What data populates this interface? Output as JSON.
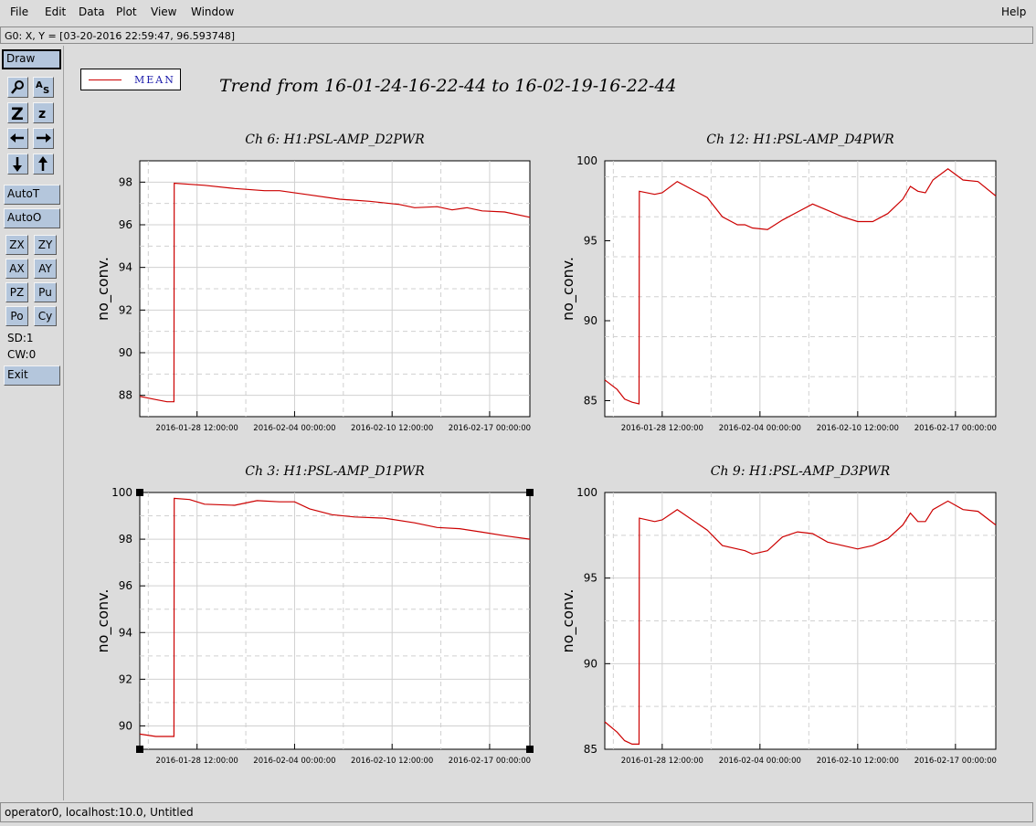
{
  "menubar": {
    "file": "File",
    "edit": "Edit",
    "data": "Data",
    "plot": "Plot",
    "view": "View",
    "window": "Window",
    "help": "Help"
  },
  "coord_readout": "G0: X, Y = [03-20-2016 22:59:47, 96.593748]",
  "toolbar": {
    "draw": "Draw",
    "autot": "AutoT",
    "autoo": "AutoO",
    "zx": "ZX",
    "zy": "ZY",
    "ax": "AX",
    "ay": "AY",
    "pz": "PZ",
    "pu": "Pu",
    "po": "Po",
    "cy": "Cy",
    "sd": "SD:1",
    "cw": "CW:0",
    "exit": "Exit",
    "icons": [
      "magnifier-icon",
      "text-scale-icon",
      "zoom-large-icon",
      "zoom-small-icon",
      "arrow-left-icon",
      "arrow-right-icon",
      "arrow-down-icon",
      "arrow-up-icon"
    ]
  },
  "legend": {
    "label": "MEAN",
    "color": "#cc0000"
  },
  "title": "Trend from 16-01-24-16-22-44 to 16-02-19-16-22-44",
  "status": "operator0, localhost:10.0, Untitled",
  "colors": {
    "trace": "#cc0000",
    "toolbar_button": "#b4c6dc",
    "background": "#dcdcdc"
  },
  "chart_data": [
    {
      "type": "line",
      "title": "Ch 6: H1:PSL-AMP_D2PWR",
      "ylabel": "no_conv.",
      "ylim": [
        87,
        99
      ],
      "yticks": [
        88,
        90,
        92,
        94,
        96,
        98
      ],
      "xlim": [
        "2016-01-24 16:22:44",
        "2016-02-19 16:22:44"
      ],
      "xticks": [
        "2016-01-28 12:00:00",
        "2016-02-04 00:00:00",
        "2016-02-10 12:00:00",
        "2016-02-17 00:00:00"
      ],
      "grid": true,
      "series": [
        {
          "name": "MEAN",
          "x": [
            "2016-01-24 16:22:44",
            "2016-01-25 18:00:00",
            "2016-01-26 12:00:00",
            "2016-01-26 23:00:00",
            "2016-01-26 23:30:00",
            "2016-01-29 00:00:00",
            "2016-01-31 00:00:00",
            "2016-02-02 00:00:00",
            "2016-02-03 00:00:00",
            "2016-02-05 00:00:00",
            "2016-02-07 00:00:00",
            "2016-02-09 00:00:00",
            "2016-02-11 00:00:00",
            "2016-02-12 00:00:00",
            "2016-02-13 12:00:00",
            "2016-02-14 12:00:00",
            "2016-02-15 12:00:00",
            "2016-02-16 12:00:00",
            "2016-02-18 00:00:00",
            "2016-02-19 16:22:44"
          ],
          "y": [
            87.95,
            87.8,
            87.7,
            87.7,
            97.95,
            97.85,
            97.7,
            97.6,
            97.6,
            97.4,
            97.2,
            97.1,
            96.95,
            96.8,
            96.85,
            96.7,
            96.8,
            96.65,
            96.6,
            96.35
          ]
        }
      ]
    },
    {
      "type": "line",
      "title": "Ch 12: H1:PSL-AMP_D4PWR",
      "ylabel": "no_conv.",
      "ylim": [
        84,
        100
      ],
      "yticks": [
        85,
        90,
        95,
        100
      ],
      "xlim": [
        "2016-01-24 16:22:44",
        "2016-02-19 16:22:44"
      ],
      "xticks": [
        "2016-01-28 12:00:00",
        "2016-02-04 00:00:00",
        "2016-02-10 12:00:00",
        "2016-02-17 00:00:00"
      ],
      "grid": true,
      "series": [
        {
          "name": "MEAN",
          "x": [
            "2016-01-24 16:22:44",
            "2016-01-25 12:00:00",
            "2016-01-26 00:00:00",
            "2016-01-26 12:00:00",
            "2016-01-26 23:00:00",
            "2016-01-26 23:30:00",
            "2016-01-28 00:00:00",
            "2016-01-28 12:00:00",
            "2016-01-29 12:00:00",
            "2016-01-31 12:00:00",
            "2016-02-01 12:00:00",
            "2016-02-02 12:00:00",
            "2016-02-03 00:00:00",
            "2016-02-03 12:00:00",
            "2016-02-04 12:00:00",
            "2016-02-05 12:00:00",
            "2016-02-06 12:00:00",
            "2016-02-07 12:00:00",
            "2016-02-08 12:00:00",
            "2016-02-09 12:00:00",
            "2016-02-10 12:00:00",
            "2016-02-11 12:00:00",
            "2016-02-12 12:00:00",
            "2016-02-13 12:00:00",
            "2016-02-14 00:00:00",
            "2016-02-14 12:00:00",
            "2016-02-15 00:00:00",
            "2016-02-15 12:00:00",
            "2016-02-16 12:00:00",
            "2016-02-17 12:00:00",
            "2016-02-18 12:00:00",
            "2016-02-19 16:22:44"
          ],
          "y": [
            86.3,
            85.7,
            85.1,
            84.9,
            84.8,
            98.1,
            97.9,
            98.0,
            98.7,
            97.7,
            96.5,
            96.0,
            96.0,
            95.8,
            95.7,
            96.3,
            96.8,
            97.3,
            96.9,
            96.5,
            96.2,
            96.2,
            96.7,
            97.6,
            98.4,
            98.1,
            98.0,
            98.8,
            99.5,
            98.8,
            98.7,
            97.8
          ]
        }
      ]
    },
    {
      "type": "line",
      "title": "Ch 3: H1:PSL-AMP_D1PWR",
      "ylabel": "no_conv.",
      "ylim": [
        89,
        100
      ],
      "yticks": [
        90,
        92,
        94,
        96,
        98,
        100
      ],
      "xlim": [
        "2016-01-24 16:22:44",
        "2016-02-19 16:22:44"
      ],
      "xticks": [
        "2016-01-28 12:00:00",
        "2016-02-04 00:00:00",
        "2016-02-10 12:00:00",
        "2016-02-17 00:00:00"
      ],
      "grid": true,
      "series": [
        {
          "name": "MEAN",
          "x": [
            "2016-01-24 16:22:44",
            "2016-01-25 18:00:00",
            "2016-01-26 23:00:00",
            "2016-01-26 23:30:00",
            "2016-01-28 00:00:00",
            "2016-01-29 00:00:00",
            "2016-01-31 00:00:00",
            "2016-02-01 12:00:00",
            "2016-02-03 00:00:00",
            "2016-02-04 00:00:00",
            "2016-02-05 00:00:00",
            "2016-02-06 12:00:00",
            "2016-02-08 00:00:00",
            "2016-02-10 00:00:00",
            "2016-02-12 00:00:00",
            "2016-02-13 12:00:00",
            "2016-02-15 00:00:00",
            "2016-02-16 12:00:00",
            "2016-02-18 00:00:00",
            "2016-02-19 16:22:44"
          ],
          "y": [
            89.65,
            89.55,
            89.55,
            99.75,
            99.7,
            99.5,
            99.45,
            99.65,
            99.6,
            99.6,
            99.3,
            99.05,
            98.95,
            98.9,
            98.7,
            98.5,
            98.45,
            98.3,
            98.15,
            98.0
          ]
        }
      ]
    },
    {
      "type": "line",
      "title": "Ch 9: H1:PSL-AMP_D3PWR",
      "ylabel": "no_conv.",
      "ylim": [
        85,
        100
      ],
      "yticks": [
        85,
        90,
        95,
        100
      ],
      "xlim": [
        "2016-01-24 16:22:44",
        "2016-02-19 16:22:44"
      ],
      "xticks": [
        "2016-01-28 12:00:00",
        "2016-02-04 00:00:00",
        "2016-02-10 12:00:00",
        "2016-02-17 00:00:00"
      ],
      "grid": true,
      "series": [
        {
          "name": "MEAN",
          "x": [
            "2016-01-24 16:22:44",
            "2016-01-25 12:00:00",
            "2016-01-26 00:00:00",
            "2016-01-26 12:00:00",
            "2016-01-26 23:00:00",
            "2016-01-26 23:30:00",
            "2016-01-28 00:00:00",
            "2016-01-28 12:00:00",
            "2016-01-29 12:00:00",
            "2016-01-31 12:00:00",
            "2016-02-01 12:00:00",
            "2016-02-02 12:00:00",
            "2016-02-03 00:00:00",
            "2016-02-03 12:00:00",
            "2016-02-04 12:00:00",
            "2016-02-05 12:00:00",
            "2016-02-06 12:00:00",
            "2016-02-07 12:00:00",
            "2016-02-08 12:00:00",
            "2016-02-09 12:00:00",
            "2016-02-10 12:00:00",
            "2016-02-11 12:00:00",
            "2016-02-12 12:00:00",
            "2016-02-13 12:00:00",
            "2016-02-14 00:00:00",
            "2016-02-14 12:00:00",
            "2016-02-15 00:00:00",
            "2016-02-15 12:00:00",
            "2016-02-16 12:00:00",
            "2016-02-17 12:00:00",
            "2016-02-18 12:00:00",
            "2016-02-19 16:22:44"
          ],
          "y": [
            86.6,
            86.0,
            85.5,
            85.3,
            85.3,
            98.5,
            98.3,
            98.4,
            99.0,
            97.8,
            96.9,
            96.7,
            96.6,
            96.4,
            96.6,
            97.4,
            97.7,
            97.6,
            97.1,
            96.9,
            96.7,
            96.9,
            97.3,
            98.1,
            98.8,
            98.3,
            98.3,
            99.0,
            99.5,
            99.0,
            98.9,
            98.1
          ]
        }
      ]
    }
  ]
}
